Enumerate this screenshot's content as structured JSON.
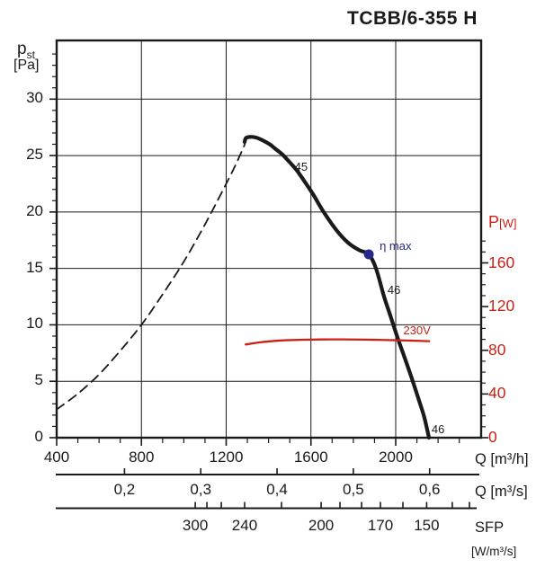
{
  "title": "TCBB/6-355 H",
  "axis_titles": {
    "pst_main": "p",
    "pst_sub": "st",
    "pst_unit": "[Pa]",
    "power_main": "P",
    "power_unit": "[W]",
    "q_m3h": "Q [m³/h]",
    "q_m3s": "Q [m³/s]",
    "sfp": "SFP",
    "sfp_unit": "[W/m³/s]"
  },
  "colors": {
    "black": "#1a1a1a",
    "red": "#cc2016",
    "blue": "#28288c"
  },
  "chart_data": {
    "type": "line",
    "title": "TCBB/6-355 H",
    "x_axis": {
      "label": "Q [m³/h]",
      "min": 400,
      "max": 2403,
      "major_ticks": [
        400,
        800,
        1200,
        1600,
        2000
      ],
      "minor_step": 100,
      "grid": true
    },
    "y_axis_left": {
      "label": "p_st [Pa]",
      "min": 0,
      "max": 35.2,
      "major_ticks": [
        0,
        5,
        10,
        15,
        20,
        25,
        30
      ],
      "minor_step": 1,
      "grid": true
    },
    "y_axis_right": {
      "label": "P [W]",
      "min": 0,
      "major_ticks": [
        0,
        40,
        80,
        120,
        160
      ],
      "minor_step": 10,
      "minor_max": 180
    },
    "x_axis_secondary": {
      "label": "Q [m³/s]",
      "ticks": [
        {
          "label": "0,2",
          "m3h": 720
        },
        {
          "label": "0,3",
          "m3h": 1080
        },
        {
          "label": "0,4",
          "m3h": 1440
        },
        {
          "label": "0,5",
          "m3h": 1800
        },
        {
          "label": "0,6",
          "m3h": 2160
        }
      ]
    },
    "x_axis_sfp": {
      "label": "SFP [W/m³/s]",
      "labeled_ticks": [
        {
          "label": "300",
          "m3h": 1054
        },
        {
          "label": "240",
          "m3h": 1287
        },
        {
          "label": "200",
          "m3h": 1648
        },
        {
          "label": "170",
          "m3h": 1928
        },
        {
          "label": "150",
          "m3h": 2146
        }
      ],
      "unlabeled_ticks_m3h": [
        1109,
        1177,
        1461,
        1737,
        1839,
        2034,
        2267,
        2348
      ]
    },
    "series": [
      {
        "name": "fan curve 230V (p_st vs Q)",
        "axis": "left",
        "style": "solid",
        "width": 4.2,
        "color": "#1a1a1a",
        "points": [
          [
            1287,
            26.2
          ],
          [
            1293,
            26.55
          ],
          [
            1310,
            26.65
          ],
          [
            1340,
            26.6
          ],
          [
            1372,
            26.35
          ],
          [
            1405,
            26.0
          ],
          [
            1435,
            25.55
          ],
          [
            1465,
            25.1
          ],
          [
            1500,
            24.4
          ],
          [
            1533,
            23.7
          ],
          [
            1570,
            22.7
          ],
          [
            1609,
            21.6
          ],
          [
            1660,
            20.0
          ],
          [
            1724,
            18.3
          ],
          [
            1780,
            17.2
          ],
          [
            1830,
            16.6
          ],
          [
            1873,
            16.25
          ],
          [
            1907,
            15.0
          ],
          [
            1945,
            12.5
          ],
          [
            1975,
            10.8
          ],
          [
            2008,
            8.9
          ],
          [
            2042,
            7.1
          ],
          [
            2077,
            5.2
          ],
          [
            2110,
            3.3
          ],
          [
            2135,
            1.8
          ],
          [
            2157,
            0
          ]
        ]
      },
      {
        "name": "system resistance curve",
        "axis": "left",
        "style": "dashed",
        "width": 1.8,
        "color": "#1a1a1a",
        "points": [
          [
            400,
            2.5
          ],
          [
            500,
            3.9
          ],
          [
            600,
            5.6
          ],
          [
            700,
            7.7
          ],
          [
            800,
            10.0
          ],
          [
            900,
            12.7
          ],
          [
            1000,
            15.6
          ],
          [
            1100,
            18.9
          ],
          [
            1200,
            22.5
          ],
          [
            1250,
            24.4
          ],
          [
            1288,
            26.0
          ]
        ]
      },
      {
        "name": "power curve 230V (P vs Q)",
        "axis": "right",
        "style": "solid",
        "width": 2.3,
        "color": "#cc2016",
        "points": [
          [
            1292,
            85.3
          ],
          [
            1360,
            87.3
          ],
          [
            1430,
            88.6
          ],
          [
            1500,
            89.3
          ],
          [
            1600,
            89.8
          ],
          [
            1700,
            90.0
          ],
          [
            1800,
            89.9
          ],
          [
            1900,
            89.6
          ],
          [
            2000,
            89.2
          ],
          [
            2080,
            88.8
          ],
          [
            2158,
            88.3
          ]
        ]
      }
    ],
    "eta_max_point": {
      "m3h": 1873,
      "pa": 16.25
    },
    "annotations": [
      {
        "text": "45",
        "m3h": 1554,
        "pa": 24.0,
        "color": "#1a1a1a",
        "align": "center"
      },
      {
        "text": "46",
        "m3h": 1992,
        "pa": 13.05,
        "color": "#1a1a1a",
        "align": "center"
      },
      {
        "text": "46",
        "m3h": 2200,
        "pa": 0.72,
        "color": "#1a1a1a",
        "align": "center"
      },
      {
        "text": "η max",
        "m3h": 1924,
        "pa": 17.0,
        "color": "#28288c",
        "align": "left"
      },
      {
        "text": "230V",
        "m3h": 2036,
        "pa": 9.45,
        "color": "#cc2016",
        "align": "left"
      }
    ]
  }
}
